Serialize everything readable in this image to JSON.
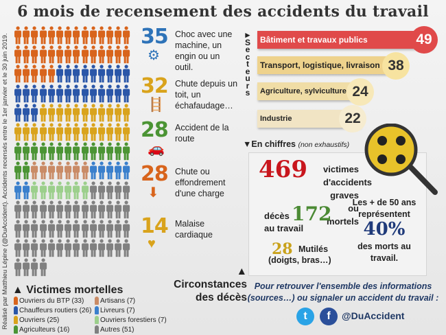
{
  "title": "6 mois de recensement des accidents du travail",
  "credit": "Réalisé par Matthieu Lépine (@DuAccident). Accidents recensés entre le 1er janvier et le 30 juin 2019.",
  "victims": {
    "heading": "▲ Victimes mortelles",
    "groups": [
      {
        "label": "Ouvriers du BTP (33)",
        "count": 33,
        "color": "#d8641c"
      },
      {
        "label": "Chauffeurs routiers (26)",
        "count": 26,
        "color": "#2a56a8"
      },
      {
        "label": "Ouvriers (25)",
        "count": 25,
        "color": "#d9a31c"
      },
      {
        "label": "Agriculteurs (16)",
        "count": 16,
        "color": "#4b9434"
      },
      {
        "label": "Artisans (7)",
        "count": 7,
        "color": "#c98b66"
      },
      {
        "label": "Livreurs (7)",
        "count": 7,
        "color": "#3a7fcc"
      },
      {
        "label": "Ouvriers forestiers (7)",
        "count": 7,
        "color": "#9ccf8c"
      },
      {
        "label": "Autres (51)",
        "count": 51,
        "color": "#808080"
      }
    ]
  },
  "circumstances": {
    "heading": "▲ Circonstances des décès",
    "items": [
      {
        "value": "35",
        "label": "Choc avec une machine, un engin ou un outil.",
        "color": "#2e73b8",
        "icon": "⚙"
      },
      {
        "value": "32",
        "label": "Chute depuis un toit, un échafaudage…",
        "color": "#d9a31c",
        "icon": "🪜"
      },
      {
        "value": "28",
        "label": "Accident de la route",
        "color": "#4b9434",
        "icon": "🚗"
      },
      {
        "value": "28",
        "label": "Chute ou effondrement d'une charge",
        "color": "#d8641c",
        "icon": "⬇"
      },
      {
        "value": "14",
        "label": "Malaise cardiaque",
        "color": "#d9a31c",
        "icon": "♥"
      }
    ]
  },
  "sectors": {
    "heading": "►Secteurs",
    "items": [
      {
        "label": "Bâtiment et travaux publics",
        "value": "49"
      },
      {
        "label": "Transport, logistique, livraison",
        "value": "38"
      },
      {
        "label": "Agriculture, sylviculture",
        "value": "24"
      },
      {
        "label": "Industrie",
        "value": "22"
      }
    ]
  },
  "figures": {
    "heading": "▼En chiffres",
    "note": "(non exhaustifs)",
    "victims_value": "469",
    "victims_text": "victimes d'accidents graves ou mortels",
    "deaths_pre": "décès",
    "deaths_value": "172",
    "deaths_post": "au travail",
    "mutilated_value": "28",
    "mutilated_text": "Mutilés",
    "mutilated_note": "(doigts, bras…)",
    "age_text": "Les +  de 50 ans représentent",
    "age_value": "40%",
    "age_post": "des morts au travail."
  },
  "footer": {
    "text": "Pour retrouver l'ensemble des informations (sources…) ou signaler un accident du travail :",
    "handle": "@DuAccident",
    "twitter": "t",
    "facebook": "f"
  }
}
